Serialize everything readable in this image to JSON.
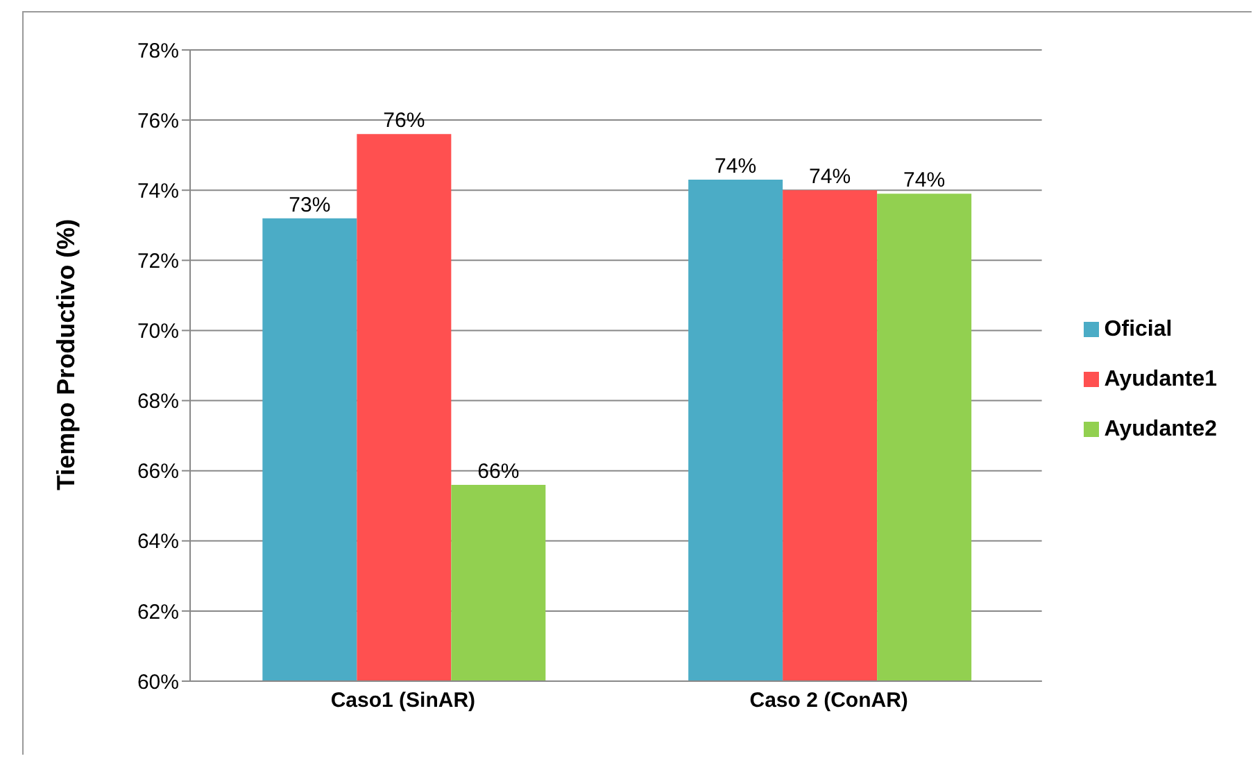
{
  "chart_data": {
    "type": "bar",
    "ylabel": "Tiempo Productivo (%)",
    "categories": [
      "Caso1 (SinAR)",
      "Caso 2 (ConAR)"
    ],
    "series": [
      {
        "name": "Oficial",
        "color": "#4bacc6",
        "values": [
          73.2,
          74.3
        ],
        "value_labels": [
          "73%",
          "74%"
        ]
      },
      {
        "name": "Ayudante1",
        "color": "#ff5050",
        "values": [
          75.6,
          74.0
        ],
        "value_labels": [
          "76%",
          "74%"
        ]
      },
      {
        "name": "Ayudante2",
        "color": "#92d050",
        "values": [
          65.6,
          73.9
        ],
        "value_labels": [
          "66%",
          "74%"
        ]
      }
    ],
    "ylim": [
      60,
      78
    ],
    "yticks": [
      {
        "value": 60,
        "label": "60%"
      },
      {
        "value": 62,
        "label": "62%"
      },
      {
        "value": 64,
        "label": "64%"
      },
      {
        "value": 66,
        "label": "66%"
      },
      {
        "value": 68,
        "label": "68%"
      },
      {
        "value": 70,
        "label": "70%"
      },
      {
        "value": 72,
        "label": "72%"
      },
      {
        "value": 74,
        "label": "74%"
      },
      {
        "value": 76,
        "label": "76%"
      },
      {
        "value": 78,
        "label": "78%"
      }
    ],
    "grid": "y",
    "legend": "right"
  }
}
